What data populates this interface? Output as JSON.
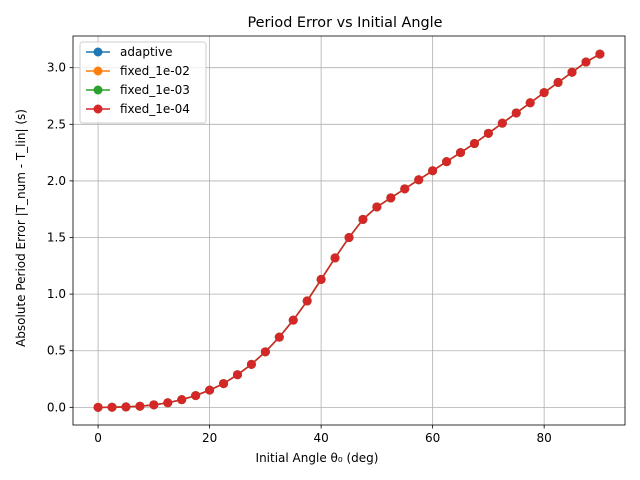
{
  "chart_data": {
    "type": "line",
    "title": "Period Error vs Initial Angle",
    "xlabel": "Initial Angle θ₀ (deg)",
    "ylabel": "Absolute Period Error |T_num - T_lin| (s)",
    "xlim": [
      -4.5,
      94.5
    ],
    "ylim": [
      -0.156,
      3.28
    ],
    "xticks": [
      0,
      20,
      40,
      60,
      80
    ],
    "yticks": [
      0.0,
      0.5,
      1.0,
      1.5,
      2.0,
      2.5,
      3.0
    ],
    "xtick_labels": [
      "0",
      "20",
      "40",
      "60",
      "80"
    ],
    "ytick_labels": [
      "0.0",
      "0.5",
      "1.0",
      "1.5",
      "2.0",
      "2.5",
      "3.0"
    ],
    "grid": true,
    "legend_position": "top-left",
    "x": [
      0,
      2.5,
      5,
      7.5,
      10,
      12.5,
      15,
      17.5,
      20,
      22.5,
      25,
      27.5,
      30,
      32.5,
      35,
      37.5,
      40,
      42.5,
      45,
      47.5,
      50,
      52.5,
      55,
      57.5,
      60,
      62.5,
      65,
      67.5,
      70,
      72.5,
      75,
      77.5,
      80,
      82.5,
      85,
      87.5,
      90
    ],
    "series": [
      {
        "name": "adaptive",
        "color": "#1f77b4",
        "values": [
          0.0,
          0.001,
          0.004,
          0.01,
          0.022,
          0.04,
          0.068,
          0.104,
          0.152,
          0.21,
          0.288,
          0.38,
          0.49,
          0.62,
          0.77,
          0.94,
          1.13,
          1.32,
          1.5,
          1.66,
          1.77,
          1.85,
          1.93,
          2.01,
          2.09,
          2.17,
          2.25,
          2.33,
          2.42,
          2.51,
          2.6,
          2.69,
          2.78,
          2.87,
          2.96,
          3.05,
          3.12
        ]
      },
      {
        "name": "fixed_1e-02",
        "color": "#ff7f0e",
        "values": [
          0.0,
          0.001,
          0.004,
          0.01,
          0.022,
          0.04,
          0.068,
          0.104,
          0.152,
          0.21,
          0.288,
          0.38,
          0.49,
          0.62,
          0.77,
          0.94,
          1.13,
          1.32,
          1.5,
          1.66,
          1.77,
          1.85,
          1.93,
          2.01,
          2.09,
          2.17,
          2.25,
          2.33,
          2.42,
          2.51,
          2.6,
          2.69,
          2.78,
          2.87,
          2.96,
          3.05,
          3.12
        ]
      },
      {
        "name": "fixed_1e-03",
        "color": "#2ca02c",
        "values": [
          0.0,
          0.001,
          0.004,
          0.01,
          0.022,
          0.04,
          0.068,
          0.104,
          0.152,
          0.21,
          0.288,
          0.38,
          0.49,
          0.62,
          0.77,
          0.94,
          1.13,
          1.32,
          1.5,
          1.66,
          1.77,
          1.85,
          1.93,
          2.01,
          2.09,
          2.17,
          2.25,
          2.33,
          2.42,
          2.51,
          2.6,
          2.69,
          2.78,
          2.87,
          2.96,
          3.05,
          3.12
        ]
      },
      {
        "name": "fixed_1e-04",
        "color": "#d62728",
        "values": [
          0.0,
          0.001,
          0.004,
          0.01,
          0.022,
          0.04,
          0.068,
          0.104,
          0.152,
          0.21,
          0.288,
          0.38,
          0.49,
          0.62,
          0.77,
          0.94,
          1.13,
          1.32,
          1.5,
          1.66,
          1.77,
          1.85,
          1.93,
          2.01,
          2.09,
          2.17,
          2.25,
          2.33,
          2.42,
          2.51,
          2.6,
          2.69,
          2.78,
          2.87,
          2.96,
          3.05,
          3.12
        ]
      }
    ]
  }
}
